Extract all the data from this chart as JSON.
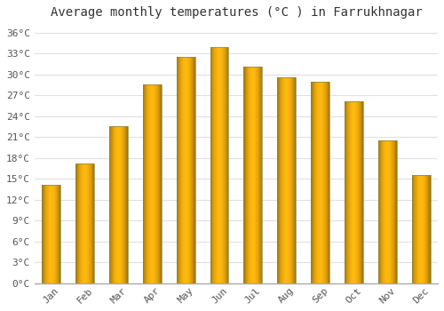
{
  "title": "Average monthly temperatures (°C ) in Farrukhnagar",
  "months": [
    "Jan",
    "Feb",
    "Mar",
    "Apr",
    "May",
    "Jun",
    "Jul",
    "Aug",
    "Sep",
    "Oct",
    "Nov",
    "Dec"
  ],
  "values": [
    14.2,
    17.2,
    22.6,
    28.6,
    32.6,
    34.0,
    31.1,
    29.6,
    29.0,
    26.1,
    20.6,
    15.6
  ],
  "bar_color_main": "#FFBB33",
  "bar_color_left": "#FFA500",
  "bar_edge_color": "#B8860B",
  "background_color": "#FFFFFF",
  "grid_color": "#E0E0E0",
  "ylim": [
    0,
    37
  ],
  "ytick_step": 3,
  "title_fontsize": 10,
  "tick_fontsize": 8,
  "bar_width": 0.55
}
